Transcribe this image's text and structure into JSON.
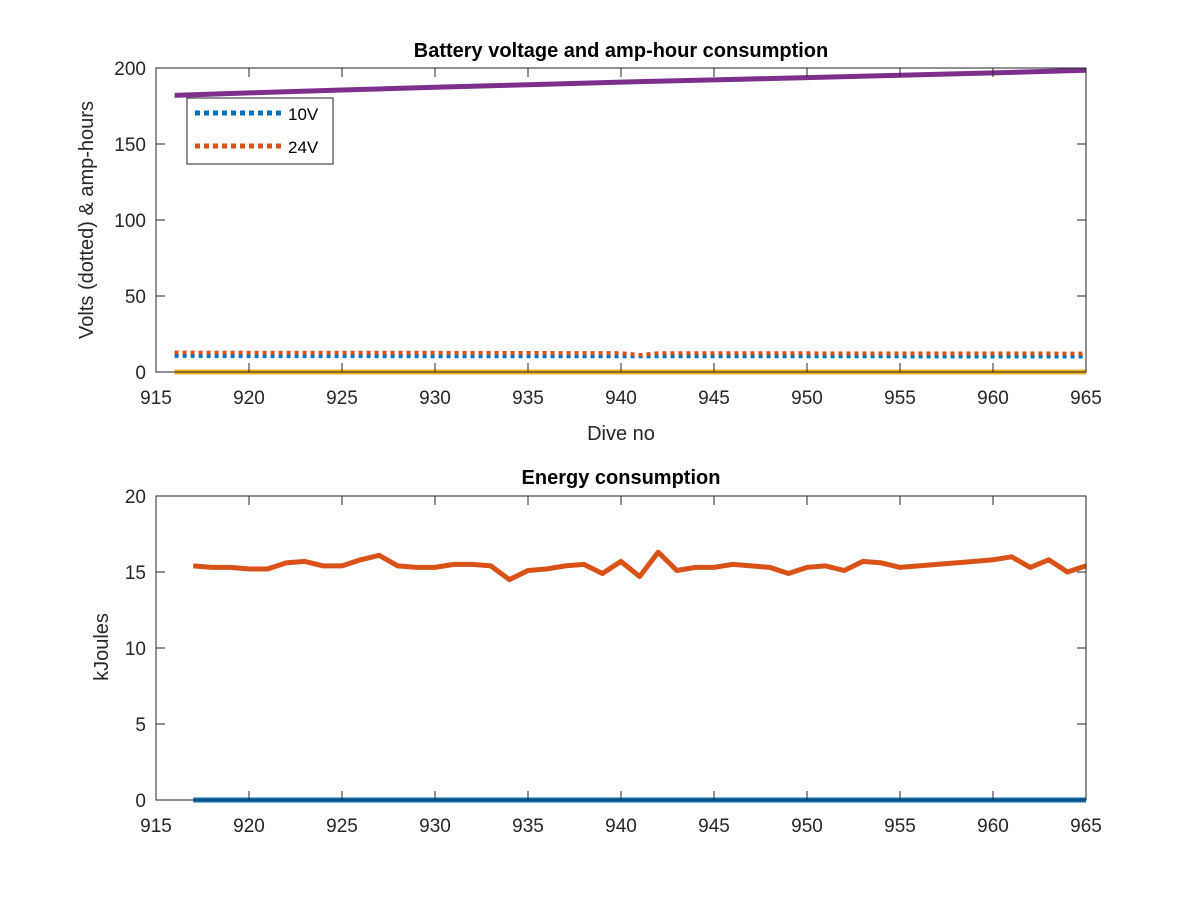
{
  "colors": {
    "blue": "#0072bd",
    "orange": "#d95319",
    "yellow": "#edb120",
    "purple": "#7e2f8e",
    "axis": "#262626"
  },
  "chart_data": [
    {
      "type": "line",
      "title": "Battery voltage and amp-hour consumption",
      "xlabel": "Dive no",
      "ylabel": "Volts (dotted) & amp-hours",
      "xlim": [
        915,
        965
      ],
      "ylim": [
        0,
        200
      ],
      "xticks": [
        915,
        920,
        925,
        930,
        935,
        940,
        945,
        950,
        955,
        960,
        965
      ],
      "yticks": [
        0,
        50,
        100,
        150,
        200
      ],
      "grid": false,
      "legend": {
        "location": "top-left",
        "entries": [
          "10V",
          "24V"
        ]
      },
      "series": [
        {
          "name": "10V",
          "style": "dotted",
          "color": "#0072bd",
          "x": [
            916,
            920,
            925,
            930,
            935,
            940,
            945,
            950,
            955,
            960,
            965
          ],
          "values": [
            10.6,
            10.5,
            10.5,
            10.4,
            10.4,
            10.3,
            10.3,
            10.3,
            10.3,
            10.2,
            10.2
          ]
        },
        {
          "name": "24V",
          "style": "dotted",
          "color": "#d95319",
          "x": [
            916,
            920,
            925,
            930,
            935,
            940,
            941,
            942,
            945,
            950,
            955,
            960,
            965
          ],
          "values": [
            12.8,
            12.7,
            12.7,
            12.6,
            12.5,
            12.4,
            11.2,
            12.4,
            12.3,
            12.3,
            12.2,
            12.2,
            12.1
          ]
        },
        {
          "style": "solid",
          "color": "#edb120",
          "x": [
            916,
            965
          ],
          "values": [
            0,
            0
          ]
        },
        {
          "style": "solid",
          "color": "#7e2f8e",
          "x": [
            916,
            920,
            925,
            930,
            935,
            940,
            945,
            950,
            955,
            960,
            965
          ],
          "values": [
            182,
            183.6,
            185.5,
            187.3,
            189,
            190.7,
            192.2,
            193.7,
            195.2,
            196.8,
            198.5
          ]
        }
      ]
    },
    {
      "type": "line",
      "title": "Energy consumption",
      "xlabel": "",
      "ylabel": "kJoules",
      "xlim": [
        915,
        965
      ],
      "ylim": [
        0,
        20
      ],
      "xticks": [
        915,
        920,
        925,
        930,
        935,
        940,
        945,
        950,
        955,
        960,
        965
      ],
      "yticks": [
        0,
        5,
        10,
        15,
        20
      ],
      "grid": false,
      "series": [
        {
          "style": "solid",
          "color": "#0072bd",
          "x": [
            917,
            965
          ],
          "values": [
            0,
            0
          ]
        },
        {
          "style": "solid",
          "color": "#d95319",
          "x": [
            917,
            918,
            919,
            920,
            921,
            922,
            923,
            924,
            925,
            926,
            927,
            928,
            929,
            930,
            931,
            932,
            933,
            934,
            935,
            936,
            937,
            938,
            939,
            940,
            941,
            942,
            943,
            944,
            945,
            946,
            947,
            948,
            949,
            950,
            951,
            952,
            953,
            954,
            955,
            956,
            957,
            958,
            959,
            960,
            961,
            962,
            963,
            964,
            965
          ],
          "values": [
            15.4,
            15.3,
            15.3,
            15.2,
            15.2,
            15.6,
            15.7,
            15.4,
            15.4,
            15.8,
            16.1,
            15.4,
            15.3,
            15.3,
            15.5,
            15.5,
            15.4,
            14.5,
            15.1,
            15.2,
            15.4,
            15.5,
            14.9,
            15.7,
            14.7,
            16.3,
            15.1,
            15.3,
            15.3,
            15.5,
            15.4,
            15.3,
            14.9,
            15.3,
            15.4,
            15.1,
            15.7,
            15.6,
            15.3,
            15.4,
            15.5,
            15.6,
            15.7,
            15.8,
            16.0,
            15.3,
            15.8,
            15.0,
            15.4
          ]
        }
      ]
    }
  ]
}
